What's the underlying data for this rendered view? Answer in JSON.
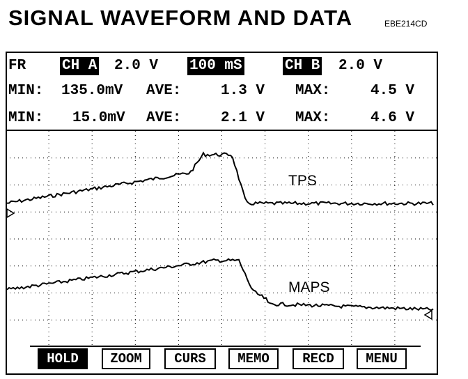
{
  "title": "SIGNAL WAVEFORM AND DATA",
  "figure_code": "EBE214CD",
  "header": {
    "mode": "FR",
    "ch_a_label": "CH A",
    "ch_a_scale": "2.0 V",
    "timebase": "100 mS",
    "ch_b_label": "CH B",
    "ch_b_scale": "2.0 V"
  },
  "readouts": [
    {
      "min_label": "MIN:",
      "min_value": "135.0mV",
      "ave_label": "AVE:",
      "ave_value": "1.3 V",
      "max_label": "MAX:",
      "max_value": "4.5 V"
    },
    {
      "min_label": "MIN:",
      "min_value": "15.0mV",
      "ave_label": "AVE:",
      "ave_value": "2.1 V",
      "max_label": "MAX:",
      "max_value": "4.6 V"
    }
  ],
  "traces": {
    "tps_label": "TPS",
    "maps_label": "MAPS"
  },
  "buttons": [
    {
      "label": "HOLD",
      "active": true
    },
    {
      "label": "ZOOM",
      "active": false
    },
    {
      "label": "CURS",
      "active": false
    },
    {
      "label": "MEMO",
      "active": false
    },
    {
      "label": "RECD",
      "active": false
    },
    {
      "label": "MENU",
      "active": false
    }
  ]
}
